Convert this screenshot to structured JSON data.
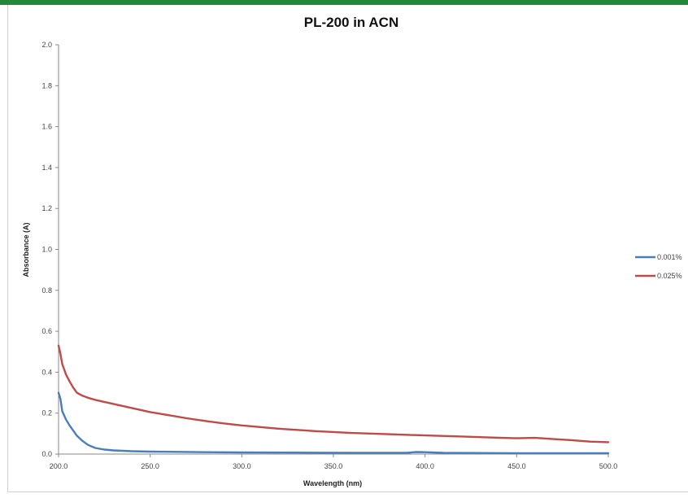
{
  "colors": {
    "frame_accent": "#1f8a3a",
    "series_0": "#4a7ebb",
    "series_1": "#be4b48",
    "axis": "#888888"
  },
  "chart_data": {
    "type": "line",
    "title": "PL-200 in ACN",
    "xlabel": "Wavelength (nm)",
    "ylabel": "Absorbance (A)",
    "xlim": [
      200,
      500
    ],
    "ylim": [
      0,
      2
    ],
    "grid": false,
    "legend_position": "right",
    "x_ticks": [
      "200.0",
      "250.0",
      "300.0",
      "350.0",
      "400.0",
      "450.0",
      "500.0"
    ],
    "y_ticks": [
      "0.0",
      "0.2",
      "0.4",
      "0.6",
      "0.8",
      "1.0",
      "1.2",
      "1.4",
      "1.6",
      "1.8",
      "2.0"
    ],
    "series": [
      {
        "name": "0.001%",
        "color": "#4a7ebb",
        "x": [
          200,
          201,
          202,
          204,
          206,
          208,
          210,
          213,
          216,
          220,
          225,
          230,
          240,
          250,
          260,
          280,
          300,
          330,
          360,
          390,
          395,
          400,
          410,
          430,
          460,
          500
        ],
        "y": [
          0.3,
          0.27,
          0.21,
          0.17,
          0.14,
          0.115,
          0.09,
          0.065,
          0.045,
          0.03,
          0.022,
          0.018,
          0.014,
          0.012,
          0.011,
          0.009,
          0.008,
          0.007,
          0.006,
          0.006,
          0.01,
          0.009,
          0.006,
          0.005,
          0.004,
          0.004
        ]
      },
      {
        "name": "0.025%",
        "color": "#be4b48",
        "x": [
          200,
          201,
          202,
          204,
          206,
          208,
          210,
          213,
          216,
          220,
          225,
          230,
          240,
          250,
          260,
          270,
          280,
          290,
          300,
          320,
          340,
          360,
          380,
          400,
          420,
          440,
          450,
          460,
          470,
          480,
          490,
          500
        ],
        "y": [
          0.53,
          0.49,
          0.44,
          0.39,
          0.355,
          0.325,
          0.3,
          0.285,
          0.275,
          0.265,
          0.255,
          0.245,
          0.225,
          0.205,
          0.19,
          0.175,
          0.162,
          0.15,
          0.14,
          0.124,
          0.112,
          0.103,
          0.097,
          0.091,
          0.086,
          0.08,
          0.077,
          0.079,
          0.073,
          0.068,
          0.061,
          0.058
        ]
      }
    ]
  }
}
